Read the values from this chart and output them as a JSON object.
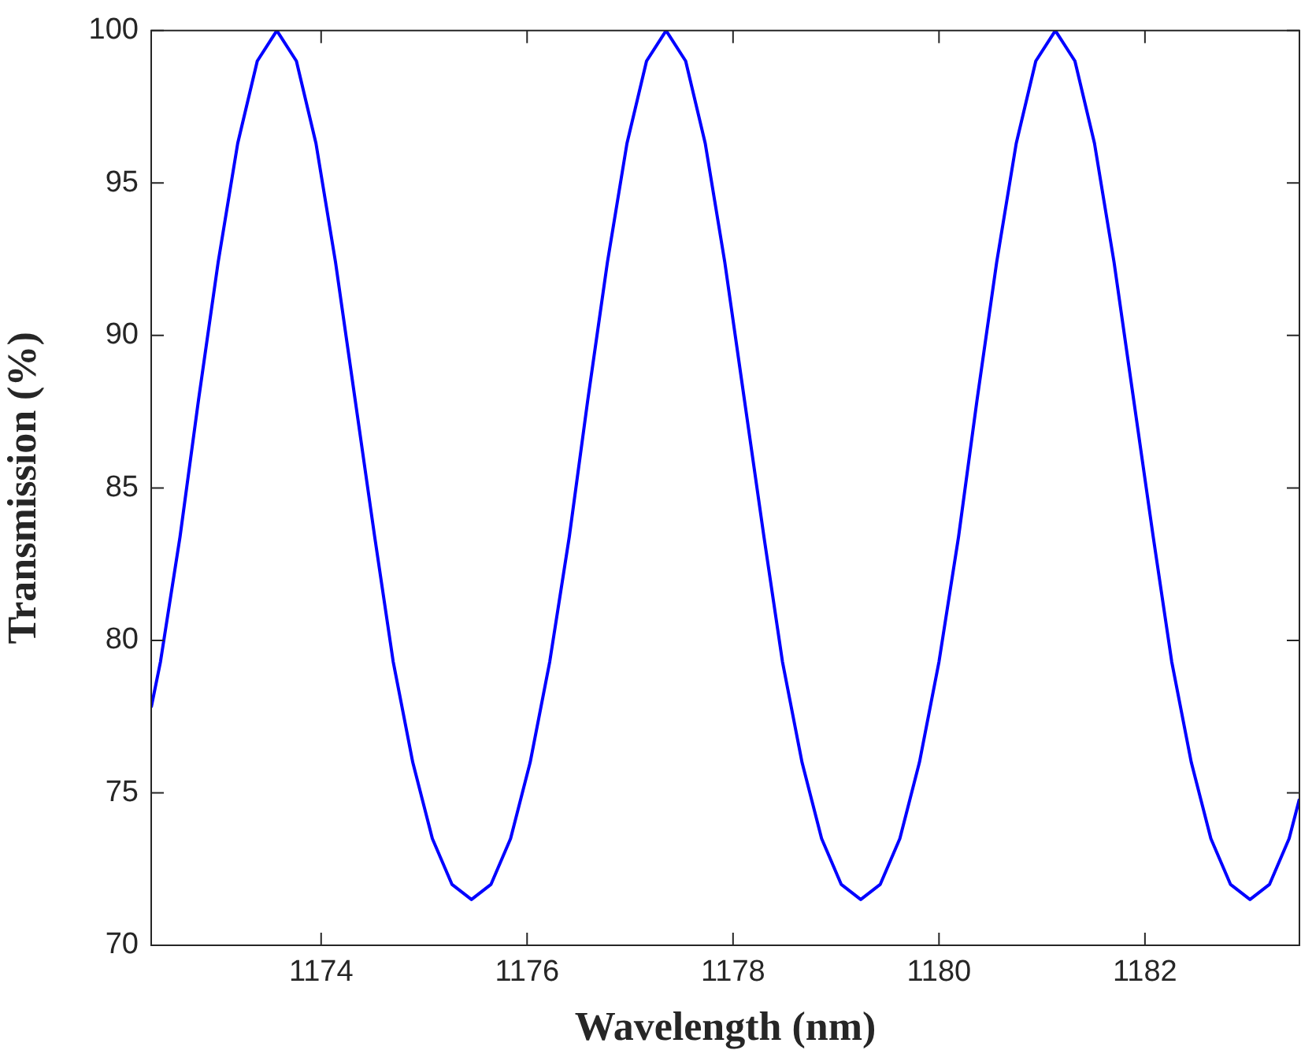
{
  "chart_data": {
    "type": "line",
    "xlabel": "Wavelength (nm)",
    "ylabel": "Transmission (%)",
    "xlim": [
      1172.35,
      1183.5
    ],
    "xticks": [
      1174,
      1176,
      1178,
      1180,
      1182
    ],
    "ylim": [
      70,
      100
    ],
    "yticks": [
      70,
      75,
      80,
      85,
      90,
      95,
      100
    ],
    "grid": false,
    "legend": false,
    "marker": "none",
    "line_style": "solid",
    "x": [
      1172.35,
      1172.44,
      1172.63,
      1172.81,
      1173.0,
      1173.19,
      1173.38,
      1173.57,
      1173.76,
      1173.95,
      1174.14,
      1174.33,
      1174.52,
      1174.7,
      1174.89,
      1175.08,
      1175.27,
      1175.46,
      1175.65,
      1175.84,
      1176.03,
      1176.22,
      1176.41,
      1176.59,
      1176.78,
      1176.97,
      1177.16,
      1177.35,
      1177.54,
      1177.73,
      1177.92,
      1178.11,
      1178.3,
      1178.48,
      1178.67,
      1178.86,
      1179.05,
      1179.24,
      1179.43,
      1179.62,
      1179.81,
      1180.0,
      1180.19,
      1180.37,
      1180.56,
      1180.75,
      1180.94,
      1181.13,
      1181.32,
      1181.51,
      1181.7,
      1181.89,
      1182.08,
      1182.26,
      1182.45,
      1182.64,
      1182.83,
      1183.02,
      1183.21,
      1183.4,
      1183.5
    ],
    "series": [
      {
        "color": "#0000ff",
        "values": [
          77.8,
          79.3,
          83.4,
          87.9,
          92.4,
          96.3,
          99.0,
          100,
          99.0,
          96.3,
          92.4,
          87.9,
          83.4,
          79.3,
          76.0,
          73.5,
          72.0,
          71.5,
          72.0,
          73.5,
          76.0,
          79.3,
          83.4,
          87.9,
          92.4,
          96.3,
          99.0,
          100,
          99.0,
          96.3,
          92.4,
          87.9,
          83.4,
          79.3,
          76.0,
          73.5,
          72.0,
          71.5,
          72.0,
          73.5,
          76.0,
          79.3,
          83.4,
          87.9,
          92.4,
          96.3,
          99.0,
          100,
          99.0,
          96.3,
          92.4,
          87.9,
          83.4,
          79.3,
          76.0,
          73.5,
          72.0,
          71.5,
          72.0,
          73.5,
          74.8
        ]
      }
    ]
  }
}
